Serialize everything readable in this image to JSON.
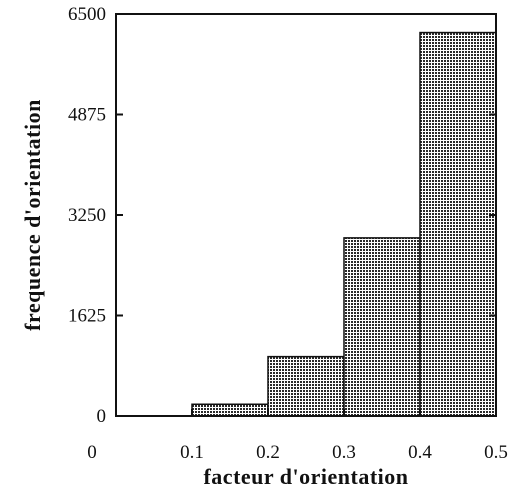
{
  "chart_data": {
    "type": "bar",
    "xlabel": "facteur  d'orientation",
    "ylabel": "frequence  d'orientation",
    "bins": [
      {
        "x0": 0.0,
        "x1": 0.1,
        "value": 0
      },
      {
        "x0": 0.1,
        "x1": 0.2,
        "value": 190
      },
      {
        "x0": 0.2,
        "x1": 0.3,
        "value": 960
      },
      {
        "x0": 0.3,
        "x1": 0.4,
        "value": 2880
      },
      {
        "x0": 0.4,
        "x1": 0.5,
        "value": 6200
      }
    ],
    "xlim": [
      0,
      0.5
    ],
    "ylim": [
      0,
      6500
    ],
    "xticks": [
      "0",
      "0.1",
      "0.2",
      "0.3",
      "0.4",
      "0.5"
    ],
    "yticks": [
      "0",
      "1625",
      "3250",
      "4875",
      "6500"
    ],
    "bar_color": "#8a8a8a",
    "grid": false
  }
}
